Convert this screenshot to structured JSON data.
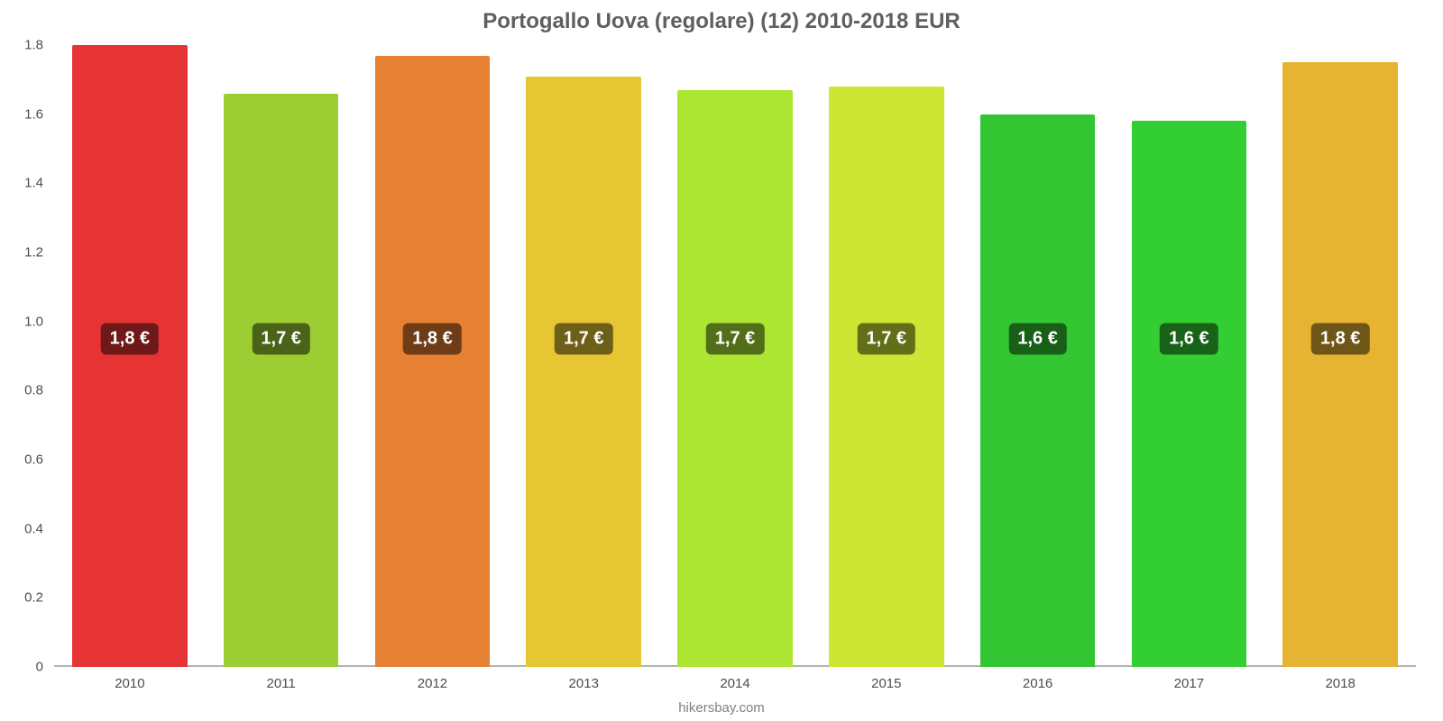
{
  "chart": {
    "type": "bar",
    "title": "Portogallo Uova (regolare) (12) 2010-2018 EUR",
    "title_fontsize": 24,
    "title_color": "#5f5f5f",
    "background_color": "#ffffff",
    "attribution": "hikersbay.com",
    "attribution_fontsize": 15,
    "attribution_color": "#808080",
    "y_axis": {
      "min": 0,
      "max": 1.8,
      "ticks": [
        0,
        0.2,
        0.4,
        0.6,
        0.8,
        1.0,
        1.2,
        1.4,
        1.6,
        1.8
      ],
      "tick_labels": [
        "0",
        "0.2",
        "0.4",
        "0.6",
        "0.8",
        "1.0",
        "1.2",
        "1.4",
        "1.6",
        "1.8"
      ],
      "tick_fontsize": 15,
      "tick_color": "#4d4d4d"
    },
    "x_axis": {
      "tick_fontsize": 15,
      "tick_color": "#4d4d4d",
      "baseline_color": "#b3b3b3"
    },
    "bar_style": {
      "width_pct": 76,
      "label_fontsize": 20,
      "label_text_color": "#ffffff",
      "label_bg_opacity": 0.32,
      "label_center_value": 0.95
    },
    "bars": [
      {
        "category": "2010",
        "value": 1.8,
        "label": "1,8 €",
        "color": "#e63333"
      },
      {
        "category": "2011",
        "value": 1.66,
        "label": "1,7 €",
        "color": "#9cce33"
      },
      {
        "category": "2012",
        "value": 1.77,
        "label": "1,8 €",
        "color": "#e68033"
      },
      {
        "category": "2013",
        "value": 1.71,
        "label": "1,7 €",
        "color": "#e6c633"
      },
      {
        "category": "2014",
        "value": 1.67,
        "label": "1,7 €",
        "color": "#ace633"
      },
      {
        "category": "2015",
        "value": 1.68,
        "label": "1,7 €",
        "color": "#cde633"
      },
      {
        "category": "2016",
        "value": 1.6,
        "label": "1,6 €",
        "color": "#33c633"
      },
      {
        "category": "2017",
        "value": 1.58,
        "label": "1,6 €",
        "color": "#33ce33"
      },
      {
        "category": "2018",
        "value": 1.75,
        "label": "1,8 €",
        "color": "#e6b333"
      }
    ]
  }
}
